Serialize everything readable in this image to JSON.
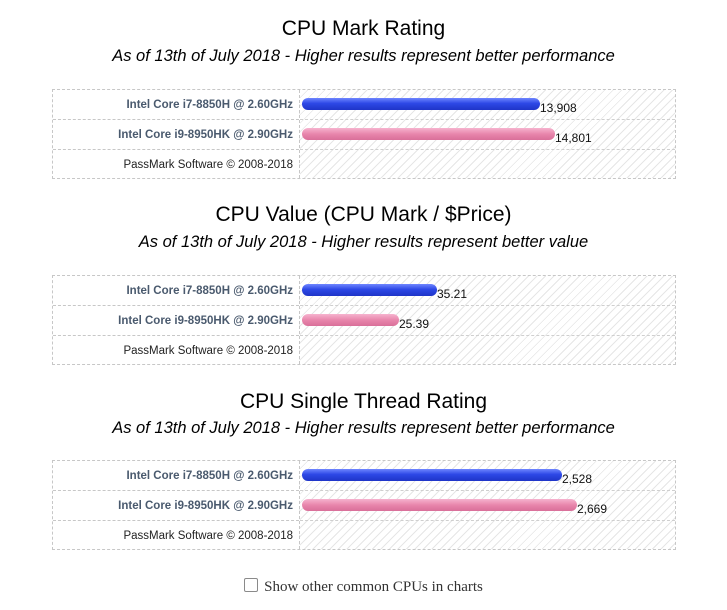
{
  "chart_data": [
    {
      "type": "bar",
      "orientation": "horizontal",
      "title": "CPU Mark Rating",
      "subtitle": "As of 13th of July 2018 - Higher results represent better performance",
      "categories": [
        "Intel Core i7-8850H @ 2.60GHz",
        "Intel Core i9-8950HK @ 2.90GHz"
      ],
      "values": [
        13908,
        14801
      ],
      "value_labels": [
        "13,908",
        "14,801"
      ],
      "bar_colors": [
        "#2d48e6",
        "#e886ac"
      ],
      "xlim": [
        0,
        22000
      ],
      "footer": "PassMark Software © 2008-2018"
    },
    {
      "type": "bar",
      "orientation": "horizontal",
      "title": "CPU Value (CPU Mark / $Price)",
      "subtitle": "As of 13th of July 2018 - Higher results represent better value",
      "categories": [
        "Intel Core i7-8850H @ 2.60GHz",
        "Intel Core i9-8950HK @ 2.90GHz"
      ],
      "values": [
        35.21,
        25.39
      ],
      "value_labels": [
        "35.21",
        "25.39"
      ],
      "bar_colors": [
        "#2d48e6",
        "#e886ac"
      ],
      "xlim": [
        0,
        98
      ],
      "footer": "PassMark Software © 2008-2018"
    },
    {
      "type": "bar",
      "orientation": "horizontal",
      "title": "CPU Single Thread Rating",
      "subtitle": "As of 13th of July 2018 - Higher results represent better performance",
      "categories": [
        "Intel Core i7-8850H @ 2.60GHz",
        "Intel Core i9-8950HK @ 2.90GHz"
      ],
      "values": [
        2528,
        2669
      ],
      "value_labels": [
        "2,528",
        "2,669"
      ],
      "bar_colors": [
        "#2d48e6",
        "#e886ac"
      ],
      "xlim": [
        0,
        3650
      ],
      "footer": "PassMark Software © 2008-2018"
    }
  ],
  "footer_checkbox": {
    "checked": false,
    "label": "Show other common CPUs in charts"
  }
}
